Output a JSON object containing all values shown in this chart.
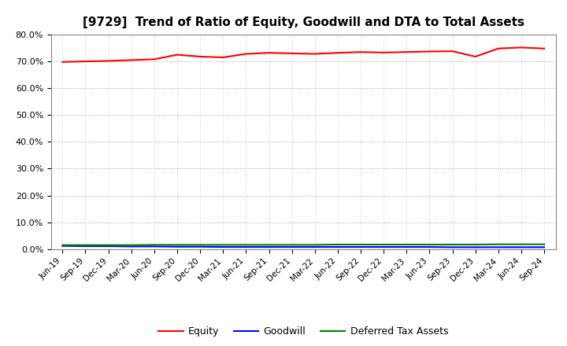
{
  "title": "[9729]  Trend of Ratio of Equity, Goodwill and DTA to Total Assets",
  "x_labels": [
    "Jun-19",
    "Sep-19",
    "Dec-19",
    "Mar-20",
    "Jun-20",
    "Sep-20",
    "Dec-20",
    "Mar-21",
    "Jun-21",
    "Sep-21",
    "Dec-21",
    "Mar-22",
    "Jun-22",
    "Sep-22",
    "Dec-22",
    "Mar-23",
    "Jun-23",
    "Sep-23",
    "Dec-23",
    "Mar-24",
    "Jun-24",
    "Sep-24"
  ],
  "equity": [
    69.8,
    70.0,
    70.2,
    70.5,
    70.8,
    72.5,
    71.8,
    71.5,
    72.8,
    73.2,
    73.0,
    72.8,
    73.2,
    73.5,
    73.3,
    73.5,
    73.7,
    73.8,
    71.8,
    74.8,
    75.2,
    74.8
  ],
  "goodwill": [
    1.2,
    1.1,
    1.1,
    1.0,
    1.0,
    0.9,
    0.9,
    0.8,
    0.8,
    0.8,
    0.8,
    0.8,
    0.8,
    0.8,
    0.8,
    0.8,
    0.8,
    0.7,
    0.7,
    0.7,
    0.7,
    0.7
  ],
  "dta": [
    1.5,
    1.5,
    1.5,
    1.5,
    1.6,
    1.6,
    1.6,
    1.6,
    1.6,
    1.6,
    1.6,
    1.6,
    1.7,
    1.7,
    1.7,
    1.7,
    1.7,
    1.7,
    1.7,
    1.8,
    1.8,
    1.8
  ],
  "equity_color": "#ff0000",
  "goodwill_color": "#0000ff",
  "dta_color": "#008000",
  "ylim": [
    0,
    80
  ],
  "yticks": [
    0,
    10,
    20,
    30,
    40,
    50,
    60,
    70,
    80
  ],
  "ytick_labels": [
    "0.0%",
    "10.0%",
    "20.0%",
    "30.0%",
    "40.0%",
    "50.0%",
    "60.0%",
    "70.0%",
    "80.0%"
  ],
  "background_color": "#ffffff",
  "grid_color": "#999999",
  "legend_labels": [
    "Equity",
    "Goodwill",
    "Deferred Tax Assets"
  ],
  "title_fontsize": 11,
  "line_width": 1.5,
  "figsize": [
    7.2,
    4.4
  ],
  "dpi": 100
}
